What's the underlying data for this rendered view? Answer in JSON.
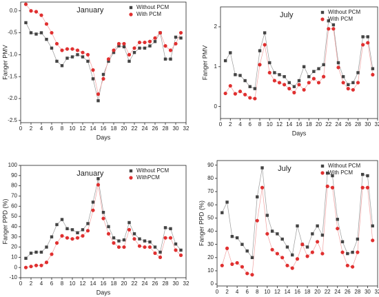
{
  "chart_data": [
    {
      "type": "line",
      "title": "January",
      "xlabel": "Days",
      "ylabel": "Fanger PMV",
      "x": [
        1,
        2,
        3,
        4,
        5,
        6,
        7,
        8,
        9,
        10,
        11,
        12,
        13,
        14,
        15,
        16,
        17,
        18,
        19,
        20,
        21,
        22,
        23,
        24,
        25,
        26,
        27,
        28,
        29,
        30,
        31
      ],
      "series": [
        {
          "name": "Without PCM",
          "color": "#444444",
          "values": [
            -0.27,
            -0.5,
            -0.53,
            -0.5,
            -0.65,
            -0.85,
            -1.15,
            -1.25,
            -1.08,
            -1.05,
            -1.0,
            -1.05,
            -1.15,
            -1.55,
            -2.05,
            -1.45,
            -1.15,
            -0.95,
            -0.8,
            -0.82,
            -1.15,
            -0.95,
            -0.85,
            -0.85,
            -0.8,
            -0.7,
            -0.5,
            -1.1,
            -1.1,
            -0.6,
            -0.62
          ]
        },
        {
          "name": "With PCM",
          "color": "#e03030",
          "values": [
            0.15,
            0.0,
            -0.02,
            -0.1,
            -0.3,
            -0.5,
            -0.75,
            -0.9,
            -0.87,
            -0.87,
            -0.9,
            -0.95,
            -1.0,
            -1.35,
            -1.9,
            -1.55,
            -1.1,
            -0.9,
            -0.75,
            -0.75,
            -1.0,
            -0.85,
            -0.72,
            -0.72,
            -0.7,
            -0.62,
            -0.5,
            -0.8,
            -0.9,
            -0.75,
            -0.5
          ]
        }
      ],
      "xlim": [
        0,
        32
      ],
      "xticks": [
        0,
        2,
        4,
        6,
        8,
        10,
        12,
        14,
        16,
        18,
        20,
        22,
        24,
        26,
        28,
        30,
        32
      ],
      "ylim": [
        -2.55,
        0.2
      ],
      "yticks": [
        {
          "value": 0,
          "label": "0.0"
        },
        -0.5,
        {
          "value": -1,
          "label": "-1.0"
        },
        -1.5,
        {
          "value": -2,
          "label": "-2.0"
        },
        -2.5
      ],
      "legend": "upper right"
    },
    {
      "type": "line",
      "title": "July",
      "xlabel": "Days",
      "ylabel": "Fanger PMV",
      "x": [
        1,
        2,
        3,
        4,
        5,
        6,
        7,
        8,
        9,
        10,
        11,
        12,
        13,
        14,
        15,
        16,
        17,
        18,
        19,
        20,
        21,
        22,
        23,
        24,
        25,
        26,
        27,
        28,
        29,
        30,
        31
      ],
      "series": [
        {
          "name": "Without PCM",
          "color": "#444444",
          "values": [
            1.15,
            1.35,
            0.8,
            0.78,
            0.65,
            0.5,
            0.45,
            1.4,
            1.85,
            1.1,
            0.85,
            0.8,
            0.75,
            0.6,
            0.5,
            0.65,
            1.0,
            0.75,
            0.88,
            0.95,
            1.05,
            2.15,
            2.05,
            1.1,
            0.75,
            0.55,
            0.6,
            0.85,
            1.75,
            1.75,
            0.95
          ]
        },
        {
          "name": "With PCM",
          "color": "#e03030",
          "values": [
            0.33,
            0.52,
            0.32,
            0.38,
            0.3,
            0.22,
            0.2,
            1.05,
            1.55,
            0.85,
            0.65,
            0.6,
            0.55,
            0.45,
            0.35,
            0.55,
            0.42,
            0.6,
            0.7,
            0.6,
            0.75,
            1.95,
            1.95,
            0.98,
            0.6,
            0.45,
            0.42,
            0.6,
            1.55,
            1.6,
            0.8
          ]
        }
      ],
      "xlim": [
        0,
        32
      ],
      "xticks": [
        0,
        2,
        4,
        6,
        8,
        10,
        12,
        14,
        16,
        18,
        20,
        22,
        24,
        26,
        28,
        30,
        32
      ],
      "ylim": [
        -0.3,
        2.5
      ],
      "yticks": [
        0,
        1,
        2
      ],
      "legend": "upper right"
    },
    {
      "type": "line",
      "title": "January",
      "xlabel": "Days",
      "ylabel": "Fanger PPD (%)",
      "x": [
        1,
        2,
        3,
        4,
        5,
        6,
        7,
        8,
        9,
        10,
        11,
        12,
        13,
        14,
        15,
        16,
        17,
        18,
        19,
        20,
        21,
        22,
        23,
        24,
        25,
        26,
        27,
        28,
        29,
        30,
        31
      ],
      "series": [
        {
          "name": "Without PCM",
          "color": "#444444",
          "values": [
            9,
            14,
            15,
            15,
            20,
            30,
            42,
            47,
            38,
            37,
            34,
            37,
            43,
            64,
            87,
            54,
            40,
            29,
            26,
            27,
            44,
            33,
            28,
            26,
            25,
            20,
            15,
            39,
            38,
            23,
            17
          ]
        },
        {
          "name": "WithPCM",
          "color": "#e03030",
          "values": [
            0,
            1,
            2,
            2,
            5,
            13,
            24,
            31,
            29,
            28,
            29,
            31,
            36,
            56,
            81,
            48,
            33,
            24,
            20,
            20,
            37,
            28,
            21,
            20,
            20,
            14,
            10,
            29,
            29,
            17,
            12
          ]
        }
      ],
      "xlim": [
        0,
        32
      ],
      "xticks": [
        0,
        2,
        4,
        6,
        8,
        10,
        12,
        14,
        16,
        18,
        20,
        22,
        24,
        26,
        28,
        30,
        32
      ],
      "ylim": [
        -10,
        100
      ],
      "yticks": [
        -10,
        0,
        10,
        20,
        30,
        40,
        50,
        60,
        70,
        80,
        90,
        100
      ],
      "legend": "upper right"
    },
    {
      "type": "line",
      "title": "July",
      "xlabel": "Days",
      "ylabel": "Fanger PPD (%)",
      "x": [
        1,
        2,
        3,
        4,
        5,
        6,
        7,
        8,
        9,
        10,
        11,
        12,
        13,
        14,
        15,
        16,
        17,
        18,
        19,
        20,
        21,
        22,
        23,
        24,
        25,
        26,
        27,
        28,
        29,
        30,
        31
      ],
      "series": [
        {
          "name": "Without PCM",
          "color": "#444444",
          "values": [
            54,
            62,
            36,
            35,
            30,
            25,
            20,
            66,
            88,
            52,
            40,
            38,
            34,
            28,
            22,
            44,
            30,
            28,
            38,
            44,
            37,
            84,
            82,
            49,
            32,
            23,
            24,
            34,
            83,
            82,
            44
          ]
        },
        {
          "name": "With PCM",
          "color": "#e03030",
          "values": [
            14,
            27,
            15,
            16,
            13,
            8,
            7,
            48,
            73,
            38,
            26,
            23,
            20,
            14,
            12,
            19,
            30,
            21,
            24,
            32,
            23,
            74,
            73,
            42,
            24,
            14,
            13,
            24,
            73,
            73,
            33
          ]
        }
      ],
      "xlim": [
        0,
        32
      ],
      "xticks": [
        0,
        2,
        4,
        6,
        8,
        10,
        12,
        14,
        16,
        18,
        20,
        22,
        24,
        26,
        28,
        30,
        32
      ],
      "ylim": [
        -1.5,
        93.5
      ],
      "yticks": [
        0,
        10,
        20,
        30,
        40,
        50,
        60,
        70,
        80,
        90
      ],
      "legend": "upper right"
    }
  ]
}
